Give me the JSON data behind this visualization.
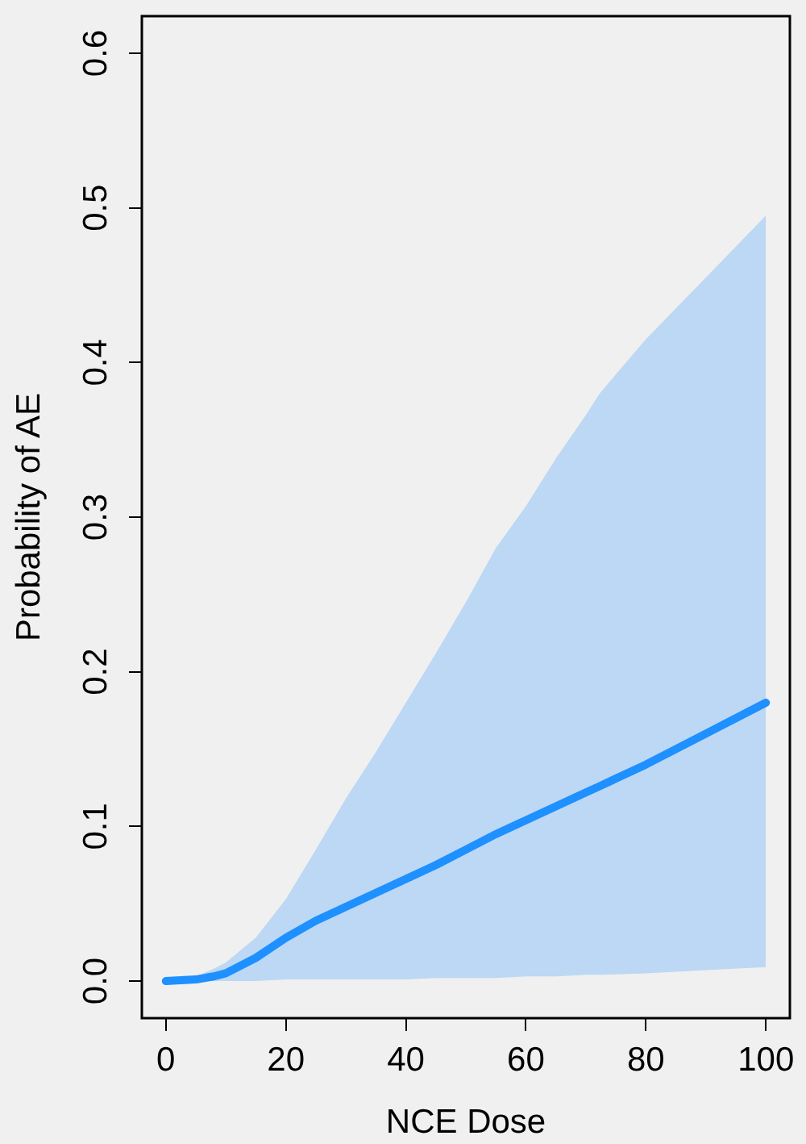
{
  "chart_data": {
    "type": "line",
    "xlabel": "NCE Dose",
    "ylabel": "Probability of AE",
    "x": [
      0,
      5,
      8,
      10,
      15,
      20,
      25,
      30,
      35,
      40,
      45,
      50,
      55,
      60,
      65,
      70,
      72.3,
      80,
      90,
      100
    ],
    "series": [
      {
        "color": "#1e90ff",
        "values": [
          0,
          0.001,
          0.003,
          0.005,
          0.015,
          0.028,
          0.039,
          0.048,
          0.057,
          0.066,
          0.075,
          0.085,
          0.095,
          0.104,
          0.113,
          0.122,
          0.126,
          0.14,
          0.16,
          0.18
        ],
        "lower": [
          0,
          0,
          0,
          0,
          0,
          0.001,
          0.001,
          0.001,
          0.001,
          0.001,
          0.002,
          0.002,
          0.002,
          0.003,
          0.003,
          0.004,
          0.004,
          0.005,
          0.007,
          0.009
        ],
        "upper": [
          0,
          0.003,
          0.008,
          0.012,
          0.028,
          0.053,
          0.085,
          0.118,
          0.148,
          0.18,
          0.212,
          0.245,
          0.28,
          0.307,
          0.338,
          0.366,
          0.38,
          0.415,
          0.455,
          0.495
        ]
      }
    ],
    "xlim": [
      -4,
      104
    ],
    "ylim": [
      -0.024,
      0.624
    ],
    "xticks": [
      0,
      20,
      40,
      60,
      80,
      100
    ],
    "yticks": [
      {
        "value": 0,
        "label": "0.0"
      },
      {
        "value": 0.1,
        "label": "0.1"
      },
      {
        "value": 0.2,
        "label": "0.2"
      },
      {
        "value": 0.3,
        "label": "0.3"
      },
      {
        "value": 0.4,
        "label": "0.4"
      },
      {
        "value": 0.5,
        "label": "0.5"
      },
      {
        "value": 0.6,
        "label": "0.6"
      }
    ]
  }
}
